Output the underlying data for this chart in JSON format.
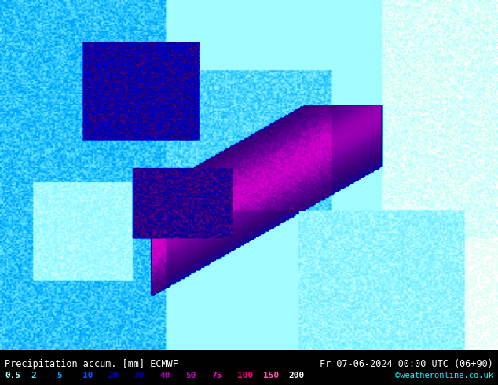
{
  "title_left": "Precipitation accum. [mm] ECMWF",
  "title_right": "Fr 07-06-2024 00:00 UTC (06+90)",
  "credit": "©weatheronline.co.uk",
  "colorbar_values": [
    0.5,
    2,
    5,
    10,
    20,
    30,
    40,
    50,
    75,
    100,
    150,
    200
  ],
  "colorbar_colors": [
    "#aaffff",
    "#55ddff",
    "#00aaff",
    "#0055ff",
    "#0000dd",
    "#0000aa",
    "#330077",
    "#660099",
    "#cc00cc",
    "#ff00aa",
    "#ff5599",
    "#ffffff"
  ],
  "bg_color": "#000000",
  "text_color": "#00ffff",
  "right_text_color": "#ffffff",
  "map_bg": "#87ceeb",
  "bottom_bar_height": 0.09,
  "fig_width": 6.34,
  "fig_height": 4.9,
  "dpi": 100
}
